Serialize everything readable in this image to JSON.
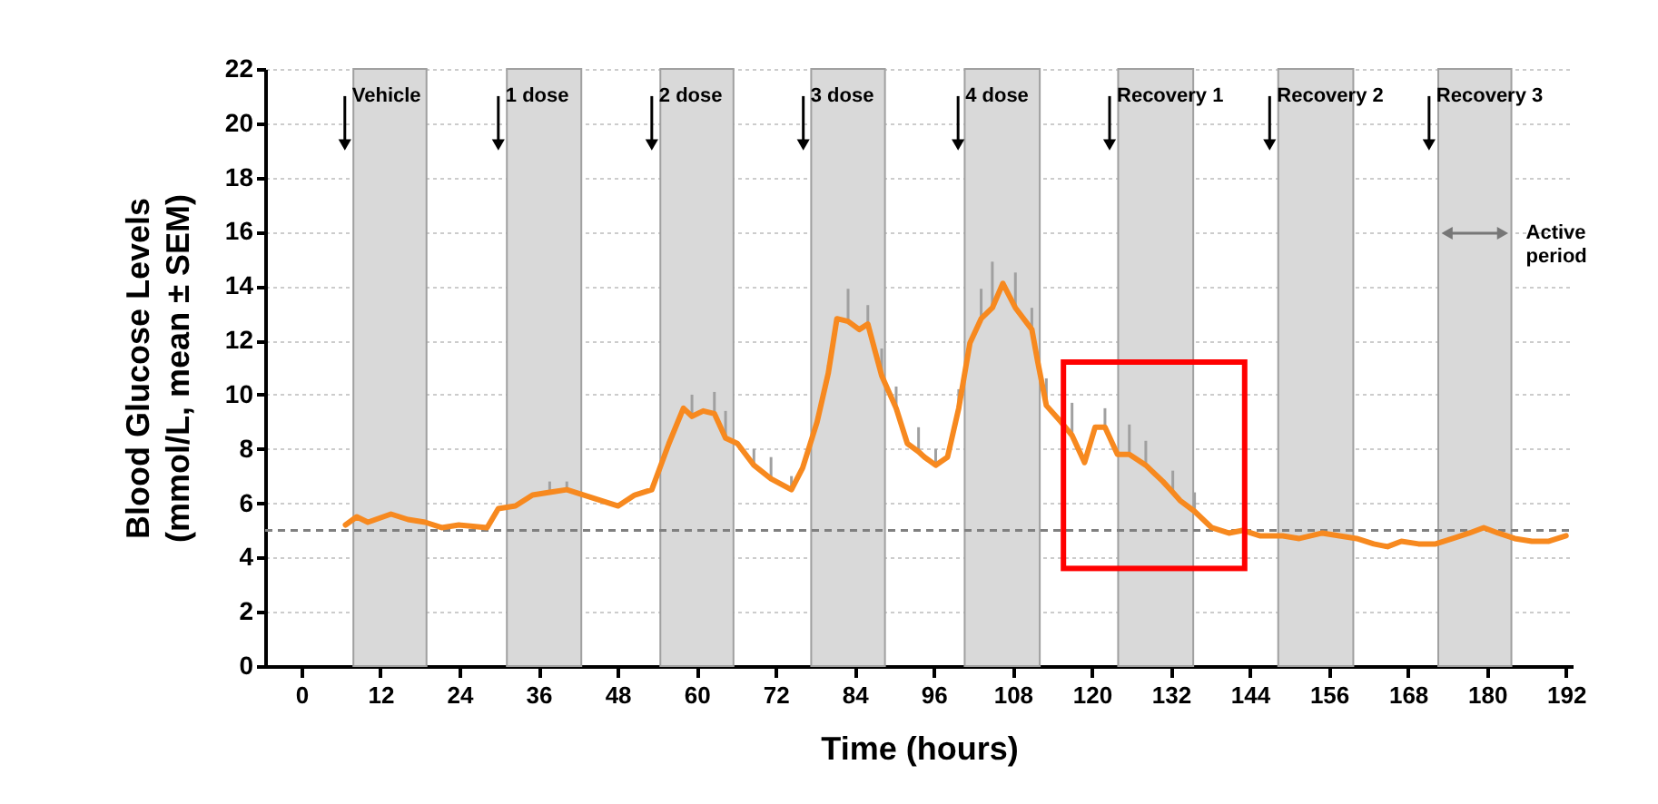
{
  "chart_data": {
    "type": "line",
    "xlabel": "Time (hours)",
    "ylabel": "Blood Glucose Levels\n(mmol/L, mean ± SEM)",
    "xlim": [
      -5.5,
      193
    ],
    "ylim": [
      0,
      22
    ],
    "xticks": [
      0,
      12,
      24,
      36,
      48,
      60,
      72,
      84,
      96,
      108,
      120,
      132,
      144,
      156,
      168,
      180,
      192
    ],
    "yticks": [
      0,
      2,
      4,
      6,
      8,
      10,
      12,
      14,
      16,
      18,
      20,
      22
    ],
    "grid": "y",
    "bands": [
      {
        "axis": "x",
        "from": 7.9,
        "to": 19.0,
        "color": "#d9d9d9"
      },
      {
        "axis": "x",
        "from": 31.2,
        "to": 42.5,
        "color": "#d9d9d9"
      },
      {
        "axis": "x",
        "from": 54.5,
        "to": 65.6,
        "color": "#d9d9d9"
      },
      {
        "axis": "x",
        "from": 77.4,
        "to": 88.6,
        "color": "#d9d9d9"
      },
      {
        "axis": "x",
        "from": 100.7,
        "to": 112.1,
        "color": "#d9d9d9"
      },
      {
        "axis": "x",
        "from": 124.0,
        "to": 135.4,
        "color": "#d9d9d9"
      },
      {
        "axis": "x",
        "from": 148.3,
        "to": 159.7,
        "color": "#d9d9d9"
      },
      {
        "axis": "x",
        "from": 172.6,
        "to": 183.7,
        "color": "#d9d9d9"
      }
    ],
    "ref_lines": [
      {
        "axis": "y",
        "value": 5,
        "color": "#808080",
        "line_style": "dashed"
      }
    ],
    "annotations": [
      {
        "text": "Vehicle",
        "x": 6.6,
        "y": 21
      },
      {
        "text": "1 dose",
        "x": 29.9,
        "y": 21
      },
      {
        "text": "2 dose",
        "x": 53.2,
        "y": 21
      },
      {
        "text": "3 dose",
        "x": 76.2,
        "y": 21
      },
      {
        "text": "4 dose",
        "x": 99.7,
        "y": 21
      },
      {
        "text": "Recovery 1",
        "x": 122.7,
        "y": 21
      },
      {
        "text": "Recovery 2",
        "x": 147.0,
        "y": 21
      },
      {
        "text": "Recovery 3",
        "x": 171.2,
        "y": 21
      },
      "Active period"
    ],
    "series": [
      {
        "color": "#f7891f",
        "x": [
          6.7,
          8.4,
          10.1,
          13.6,
          16.2,
          18.8,
          21.3,
          23.9,
          28.2,
          29.9,
          32.5,
          35.1,
          37.7,
          40.3,
          42.9,
          45.5,
          48.1,
          50.6,
          53.2,
          55.8,
          58.0,
          59.3,
          61.0,
          62.7,
          64.4,
          66.2,
          68.7,
          71.3,
          74.4,
          76.1,
          78.3,
          80.0,
          81.3,
          83.0,
          84.7,
          86.0,
          88.1,
          90.3,
          92.0,
          93.7,
          94.6,
          96.3,
          98.1,
          99.8,
          101.5,
          103.2,
          104.9,
          106.5,
          108.4,
          110.9,
          111.8,
          113.1,
          115.3,
          117.0,
          118.9,
          120.5,
          122.0,
          123.9,
          125.7,
          128.2,
          130.8,
          132.3,
          133.4,
          135.6,
          138.2,
          140.8,
          142.9,
          145.5,
          149.0,
          151.5,
          155.0,
          157.6,
          160.2,
          162.8,
          164.9,
          167.0,
          169.6,
          172.2,
          174.8,
          177.3,
          179.5,
          181.7,
          184.2,
          186.8,
          189.4,
          192.0
        ],
        "values": [
          5.2,
          5.5,
          5.3,
          5.6,
          5.4,
          5.3,
          5.1,
          5.2,
          5.1,
          5.8,
          5.9,
          6.3,
          6.4,
          6.5,
          6.3,
          6.1,
          5.9,
          6.3,
          6.5,
          8.2,
          9.5,
          9.2,
          9.4,
          9.3,
          8.4,
          8.2,
          7.4,
          6.9,
          6.5,
          7.3,
          9.0,
          10.8,
          12.8,
          12.7,
          12.4,
          12.6,
          10.7,
          9.5,
          8.2,
          7.9,
          7.7,
          7.4,
          7.7,
          9.5,
          11.9,
          12.8,
          13.2,
          14.1,
          13.2,
          12.4,
          11.2,
          9.6,
          9.0,
          8.5,
          7.5,
          8.8,
          8.8,
          7.8,
          7.8,
          7.4,
          6.8,
          6.4,
          6.1,
          5.7,
          5.1,
          4.9,
          5.0,
          4.8,
          4.8,
          4.7,
          4.9,
          4.8,
          4.7,
          4.5,
          4.4,
          4.6,
          4.5,
          4.5,
          4.7,
          4.9,
          5.1,
          4.9,
          4.7,
          4.6,
          4.6,
          4.8
        ],
        "errors": [
          null,
          null,
          null,
          null,
          null,
          null,
          null,
          null,
          null,
          null,
          null,
          null,
          [
            6.4,
            6.8
          ],
          [
            6.5,
            6.8
          ],
          null,
          null,
          null,
          null,
          null,
          null,
          null,
          [
            9.2,
            10.0
          ],
          null,
          [
            9.3,
            10.1
          ],
          [
            8.4,
            9.4
          ],
          null,
          [
            7.4,
            8.0
          ],
          [
            6.9,
            7.7
          ],
          [
            6.5,
            7.0
          ],
          null,
          null,
          [
            10.8,
            11.1
          ],
          null,
          [
            12.7,
            13.9
          ],
          null,
          [
            12.6,
            13.3
          ],
          [
            10.7,
            11.7
          ],
          [
            9.5,
            10.3
          ],
          null,
          [
            7.9,
            8.8
          ],
          null,
          [
            7.4,
            8.0
          ],
          null,
          [
            9.5,
            10.2
          ],
          null,
          [
            12.8,
            13.9
          ],
          [
            13.2,
            14.9
          ],
          null,
          [
            13.2,
            14.5
          ],
          [
            12.4,
            13.2
          ],
          null,
          [
            9.6,
            10.6
          ],
          null,
          [
            8.5,
            9.7
          ],
          null,
          null,
          [
            8.8,
            9.5
          ],
          null,
          [
            7.8,
            8.9
          ],
          [
            7.4,
            8.3
          ],
          null,
          [
            6.4,
            7.2
          ],
          null,
          [
            5.7,
            6.4
          ],
          null,
          null,
          null,
          null,
          null,
          null,
          null,
          null,
          null,
          null,
          null,
          null,
          null,
          null,
          null,
          null,
          null,
          null,
          null,
          null,
          null,
          null
        ]
      }
    ]
  }
}
